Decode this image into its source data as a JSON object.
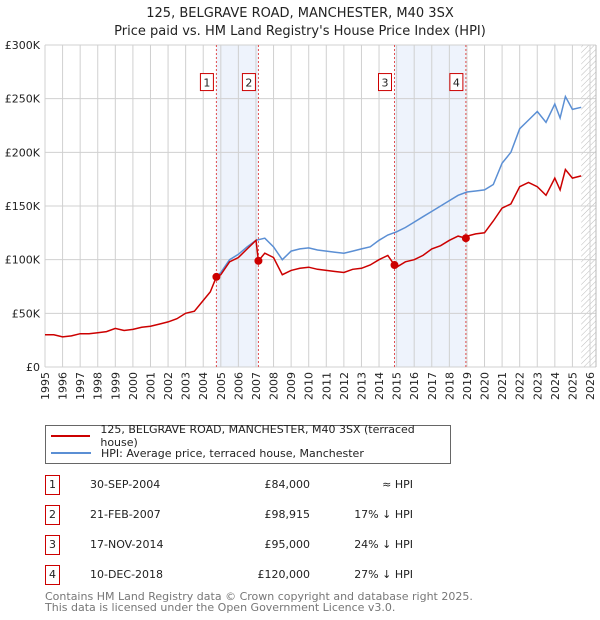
{
  "header": {
    "title": "125, BELGRAVE ROAD, MANCHESTER, M40 3SX",
    "subtitle": "Price paid vs. HM Land Registry's House Price Index (HPI)"
  },
  "chart_data": {
    "type": "line",
    "xlim": [
      1995,
      2026
    ],
    "ylim": [
      0,
      300000
    ],
    "y_ticks": [
      {
        "v": 0,
        "label": "£0"
      },
      {
        "v": 50000,
        "label": "£50K"
      },
      {
        "v": 100000,
        "label": "£100K"
      },
      {
        "v": 150000,
        "label": "£150K"
      },
      {
        "v": 200000,
        "label": "£200K"
      },
      {
        "v": 250000,
        "label": "£250K"
      },
      {
        "v": 300000,
        "label": "£300K"
      }
    ],
    "x_ticks": [
      "1995",
      "1996",
      "1997",
      "1998",
      "1999",
      "2000",
      "2001",
      "2002",
      "2003",
      "2004",
      "2005",
      "2006",
      "2007",
      "2008",
      "2009",
      "2010",
      "2011",
      "2012",
      "2013",
      "2014",
      "2015",
      "2016",
      "2017",
      "2018",
      "2019",
      "2020",
      "2021",
      "2022",
      "2023",
      "2024",
      "2025",
      "2026"
    ],
    "grid": true,
    "shaded_ranges": [
      [
        2004.75,
        2007.14
      ],
      [
        2014.88,
        2018.94
      ]
    ],
    "forecast_hatch_from": 2025.5,
    "series": [
      {
        "name": "125, BELGRAVE ROAD, MANCHESTER, M40 3SX (terraced house)",
        "color": "#cc0000",
        "x": [
          1995,
          1995.5,
          1996,
          1996.5,
          1997,
          1997.5,
          1998,
          1998.5,
          1999,
          1999.5,
          2000,
          2000.5,
          2001,
          2001.5,
          2002,
          2002.5,
          2003,
          2003.5,
          2004,
          2004.4,
          2004.75,
          2005,
          2005.5,
          2006,
          2006.5,
          2007,
          2007.14,
          2007.5,
          2008,
          2008.5,
          2009,
          2009.5,
          2010,
          2010.5,
          2011,
          2011.5,
          2012,
          2012.5,
          2013,
          2013.5,
          2014,
          2014.5,
          2014.88,
          2015,
          2015.5,
          2016,
          2016.5,
          2017,
          2017.5,
          2018,
          2018.5,
          2018.94,
          2019,
          2019.5,
          2020,
          2020.5,
          2021,
          2021.5,
          2022,
          2022.5,
          2023,
          2023.5,
          2024,
          2024.3,
          2024.6,
          2025,
          2025.5
        ],
        "y": [
          30000,
          30000,
          28000,
          29000,
          31000,
          31000,
          32000,
          33000,
          36000,
          34000,
          35000,
          37000,
          38000,
          40000,
          42000,
          45000,
          50000,
          52000,
          62000,
          70000,
          84000,
          86000,
          98000,
          102000,
          110000,
          118000,
          98915,
          106000,
          102000,
          86000,
          90000,
          92000,
          93000,
          91000,
          90000,
          89000,
          88000,
          91000,
          92000,
          95000,
          100000,
          104000,
          95000,
          93000,
          98000,
          100000,
          104000,
          110000,
          113000,
          118000,
          122000,
          120000,
          122000,
          124000,
          125000,
          136000,
          148000,
          152000,
          168000,
          172000,
          168000,
          160000,
          176000,
          165000,
          184000,
          176000,
          178000
        ]
      },
      {
        "name": "HPI: Average price, terraced house, Manchester",
        "color": "#5b8fd4",
        "x": [
          2004.75,
          2005,
          2005.5,
          2006,
          2006.5,
          2007,
          2007.5,
          2008,
          2008.5,
          2009,
          2009.5,
          2010,
          2010.5,
          2011,
          2011.5,
          2012,
          2012.5,
          2013,
          2013.5,
          2014,
          2014.5,
          2015,
          2015.5,
          2016,
          2016.5,
          2017,
          2017.5,
          2018,
          2018.5,
          2019,
          2019.5,
          2020,
          2020.5,
          2021,
          2021.5,
          2022,
          2022.5,
          2023,
          2023.5,
          2024,
          2024.3,
          2024.6,
          2025,
          2025.5
        ],
        "y": [
          84000,
          88000,
          100000,
          105000,
          112000,
          118000,
          120000,
          112000,
          100000,
          108000,
          110000,
          111000,
          109000,
          108000,
          107000,
          106000,
          108000,
          110000,
          112000,
          118000,
          123000,
          126000,
          130000,
          135000,
          140000,
          145000,
          150000,
          155000,
          160000,
          163000,
          164000,
          165000,
          170000,
          190000,
          200000,
          222000,
          230000,
          238000,
          228000,
          245000,
          232000,
          252000,
          240000,
          242000
        ]
      }
    ],
    "sales": [
      {
        "n": "1",
        "x": 2004.75,
        "y": 84000,
        "label_y": 265000
      },
      {
        "n": "2",
        "x": 2007.14,
        "y": 98915,
        "label_y": 265000
      },
      {
        "n": "3",
        "x": 2014.88,
        "y": 95000,
        "label_y": 265000
      },
      {
        "n": "4",
        "x": 2018.94,
        "y": 120000,
        "label_y": 265000
      }
    ]
  },
  "legend": [
    {
      "label": "125, BELGRAVE ROAD, MANCHESTER, M40 3SX (terraced house)",
      "color": "#cc0000"
    },
    {
      "label": "HPI: Average price, terraced house, Manchester",
      "color": "#5b8fd4"
    }
  ],
  "transactions": [
    {
      "n": "1",
      "date": "30-SEP-2004",
      "price": "£84,000",
      "hpi": "≈ HPI"
    },
    {
      "n": "2",
      "date": "21-FEB-2007",
      "price": "£98,915",
      "hpi": "17% ↓ HPI"
    },
    {
      "n": "3",
      "date": "17-NOV-2014",
      "price": "£95,000",
      "hpi": "24% ↓ HPI"
    },
    {
      "n": "4",
      "date": "10-DEC-2018",
      "price": "£120,000",
      "hpi": "27% ↓ HPI"
    }
  ],
  "footer": {
    "line1": "Contains HM Land Registry data © Crown copyright and database right 2025.",
    "line2": "This data is licensed under the Open Government Licence v3.0."
  }
}
